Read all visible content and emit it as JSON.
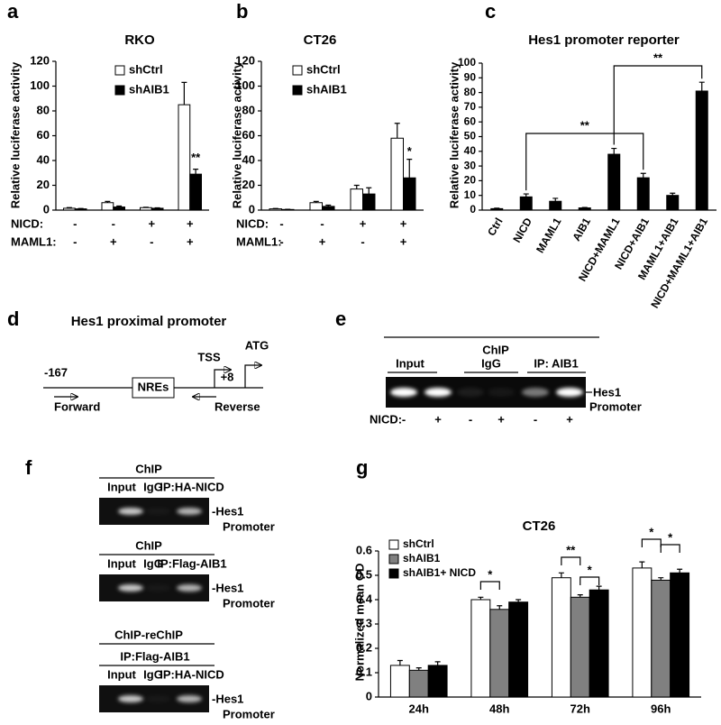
{
  "chart_data": [
    {
      "type": "bar",
      "panel_label": "a",
      "title": "RKO",
      "y_label": "Relative luciferase activity",
      "categories": [
        null,
        null,
        null,
        null
      ],
      "series": [
        {
          "name": "shCtrl",
          "color": "#ffffff",
          "values": [
            1.5,
            6,
            2,
            85
          ],
          "errors": [
            0.5,
            1,
            0.3,
            18
          ]
        },
        {
          "name": "shAIB1",
          "color": "#000000",
          "values": [
            1,
            2.5,
            1.5,
            29
          ],
          "errors": [
            0.3,
            0.8,
            0.3,
            4
          ]
        }
      ],
      "ylim": [
        0,
        120
      ],
      "yticks": [
        0,
        20,
        40,
        60,
        80,
        100,
        120
      ],
      "treatments": [
        {
          "name": "NICD:",
          "values": [
            "-",
            "-",
            "+",
            "+"
          ]
        },
        {
          "name": "MAML1:",
          "values": [
            "-",
            "+",
            "-",
            "+"
          ]
        }
      ],
      "annotations": [
        "**"
      ]
    },
    {
      "type": "bar",
      "panel_label": "b",
      "title": "CT26",
      "y_label": "Relative luciferase activity",
      "categories": [
        null,
        null,
        null,
        null
      ],
      "series": [
        {
          "name": "shCtrl",
          "color": "#ffffff",
          "values": [
            1,
            6,
            17,
            58
          ],
          "errors": [
            0.3,
            1,
            3,
            12
          ]
        },
        {
          "name": "shAIB1",
          "color": "#000000",
          "values": [
            0.5,
            3,
            13,
            26
          ],
          "errors": [
            0.2,
            1,
            5,
            15
          ]
        }
      ],
      "ylim": [
        0,
        120
      ],
      "yticks": [
        0,
        20,
        40,
        60,
        80,
        100,
        120
      ],
      "treatments": [
        {
          "name": "NICD:",
          "values": [
            "-",
            "-",
            "+",
            "+"
          ]
        },
        {
          "name": "MAML1:",
          "values": [
            "-",
            "+",
            "-",
            "+"
          ]
        }
      ],
      "annotations": [
        "*"
      ]
    },
    {
      "type": "bar",
      "panel_label": "c",
      "title": "Hes1 promoter reporter",
      "y_label": "Relative luciferase activity",
      "categories": [
        "Ctrl",
        "NICD",
        "MAML1",
        "AIB1",
        "NICD+MAML1",
        "NICD+AIB1",
        "MAML1+AIB1",
        "NICD+MAML1+AIB1"
      ],
      "values": [
        1,
        9,
        6,
        1.5,
        38,
        22,
        10,
        81
      ],
      "errors": [
        0.3,
        2,
        2,
        0.3,
        4,
        3,
        1.5,
        6
      ],
      "color": "#000000",
      "ylim": [
        0,
        100
      ],
      "yticks": [
        0,
        10,
        20,
        30,
        40,
        50,
        60,
        70,
        80,
        90,
        100
      ],
      "annotations": [
        "**",
        "**"
      ]
    },
    {
      "type": "bar",
      "panel_label": "g",
      "title": "CT26",
      "y_label": "Normalized mean OD",
      "categories": [
        "24h",
        "48h",
        "72h",
        "96h"
      ],
      "series": [
        {
          "name": "shCtrl",
          "color": "#ffffff",
          "values": [
            0.13,
            0.4,
            0.49,
            0.53
          ],
          "errors": [
            0.02,
            0.01,
            0.02,
            0.025
          ]
        },
        {
          "name": "shAIB1",
          "color": "#808080",
          "values": [
            0.11,
            0.36,
            0.41,
            0.48
          ],
          "errors": [
            0.01,
            0.015,
            0.01,
            0.01
          ]
        },
        {
          "name": "shAIB1+ NICD",
          "color": "#000000",
          "values": [
            0.13,
            0.39,
            0.44,
            0.51
          ],
          "errors": [
            0.015,
            0.01,
            0.015,
            0.015
          ]
        }
      ],
      "ylim": [
        0,
        0.6
      ],
      "yticks": [
        0,
        0.1,
        0.2,
        0.3,
        0.4,
        0.5,
        0.6
      ],
      "annotations": [
        "*",
        "**",
        "*",
        "*",
        "*"
      ]
    }
  ],
  "diagram_d": {
    "panel_label": "d",
    "title": "Hes1  proximal promoter",
    "start": "-167",
    "forward": "Forward",
    "element": "NREs",
    "tss": "TSS",
    "tss_pos": "+8",
    "atg": "ATG",
    "reverse": "Reverse"
  },
  "gel_e": {
    "panel_label": "e",
    "header": "ChIP",
    "lanes": [
      "Input",
      "IgG",
      "IP: AIB1"
    ],
    "band": [
      "Hes1",
      "Promoter"
    ],
    "row_label": "NICD:",
    "row": [
      "-",
      "+",
      "-",
      "+",
      "-",
      "+"
    ]
  },
  "gel_f": {
    "panel_label": "f",
    "blots": [
      {
        "header": "ChIP",
        "lanes": [
          "Input",
          "IgG",
          "IP:HA-NICD"
        ],
        "band": [
          "-Hes1",
          "Promoter"
        ]
      },
      {
        "header": "ChIP",
        "lanes": [
          "Input",
          "IgG",
          "IP:Flag-AIB1"
        ],
        "band": [
          "-Hes1",
          "Promoter"
        ]
      },
      {
        "header": "ChIP-reChIP",
        "subheader": "IP:Flag-AIB1",
        "lanes": [
          "Input",
          "IgG",
          "IP:HA-NICD"
        ],
        "band": [
          "-Hes1",
          "Promoter"
        ]
      }
    ]
  }
}
